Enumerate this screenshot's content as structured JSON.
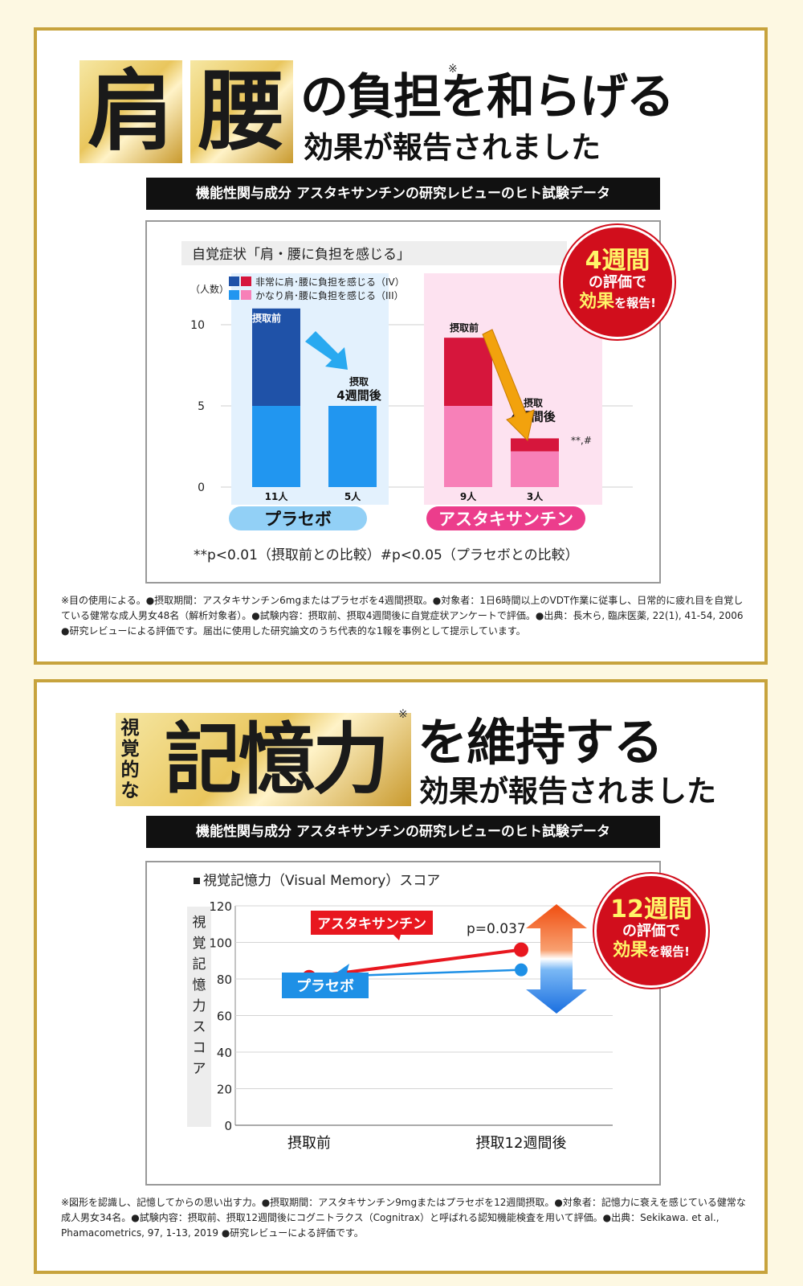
{
  "section1": {
    "kanji1": "肩",
    "kanji2": "腰",
    "headline": "の負担を和らげる",
    "mark": "※",
    "subhead": "効果が報告されました",
    "banner": "機能性関与成分 アスタキサンチンの研究レビューのヒト試験データ",
    "badge": {
      "line1": "4週間",
      "line2": "の評価で",
      "line3a": "効果",
      "line3b": "を報告!"
    },
    "footnote": "※目の使用による。●摂取期間：アスタキサンチン6mgまたはプラセボを4週間摂取。●対象者：1日6時間以上のVDT作業に従事し、日常的に疲れ目を自覚している健常な成人男女48名（解析対象者）。●試験内容：摂取前、摂取4週間後に自覚症状アンケートで評価。●出典：長木ら, 臨床医薬, 22(1), 41-54, 2006 ●研究レビューによる評価です。届出に使用した研究論文のうち代表的な1報を事例として提示しています。",
    "chart_data": {
      "type": "bar",
      "title": "自覚症状「肩・腰に負担を感じる」",
      "ylabel": "（人数）",
      "ylim": [
        0,
        11
      ],
      "yticks": [
        "0",
        "5",
        "10"
      ],
      "groups": [
        "プラセボ",
        "アスタキサンチン"
      ],
      "categories": [
        "摂取前",
        "摂取4週間後",
        "摂取前",
        "摂取4週間後"
      ],
      "cat_labels": [
        "摂取前",
        "摂取\n4週間後",
        "摂取前",
        "摂取\n4週間後"
      ],
      "totals": [
        "11人",
        "5人",
        "9人",
        "3人"
      ],
      "series": [
        {
          "name": "かなり肩･腰に負担を感じる（III）",
          "values": [
            5,
            5,
            5,
            2.2
          ]
        },
        {
          "name": "非常に肩･腰に負担を感じる（IV）",
          "values": [
            6,
            0,
            4.2,
            0.8
          ]
        }
      ],
      "colors": {
        "placebo_dark": "#1f52a8",
        "placebo_light": "#2196f0",
        "asta_dark": "#d6163c",
        "asta_light": "#f780b8",
        "placebo_bg": "#e3f1fd",
        "asta_bg": "#fde2f0"
      },
      "sig_mark": "**,#",
      "pnote": "**p<0.01（摂取前との比較）#p<0.05（プラセボとの比較）"
    }
  },
  "section2": {
    "small": [
      "視",
      "覚",
      "的",
      "な"
    ],
    "big": "記憶力",
    "mark": "※",
    "headline": "を維持する",
    "subhead": "効果が報告されました",
    "banner": "機能性関与成分 アスタキサンチンの研究レビューのヒト試験データ",
    "badge": {
      "line1": "12週間",
      "line2": "の評価で",
      "line3a": "効果",
      "line3b": "を報告!"
    },
    "footnote": "※図形を認識し、記憶してからの思い出す力。●摂取期間：アスタキサンチン9mgまたはプラセボを12週間摂取。●対象者：記憶力に衰えを感じている健常な成人男女34名。●試験内容：摂取前、摂取12週間後にコグニトラクス（Cognitrax）と呼ばれる認知機能検査を用いて評価。●出典：Sekikawa. et al., Phamacometrics, 97, 1-13, 2019 ●研究レビューによる評価です。",
    "chart_data": {
      "type": "line",
      "title": "視覚記憶力（Visual Memory）スコア",
      "ylabel": "視覚記憶力スコア",
      "ylim": [
        0,
        120
      ],
      "yticks": [
        "0",
        "20",
        "40",
        "60",
        "80",
        "100",
        "120"
      ],
      "categories": [
        "摂取前",
        "摂取12週間後"
      ],
      "series": [
        {
          "name": "アスタキサンチン",
          "values": [
            81,
            96
          ],
          "color": "#e8171f"
        },
        {
          "name": "プラセボ",
          "values": [
            81,
            85
          ],
          "color": "#1e90e6"
        }
      ],
      "annotation": "p=0.037"
    }
  }
}
